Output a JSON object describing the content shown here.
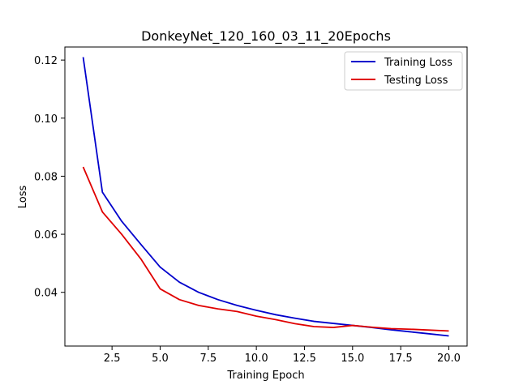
{
  "chart_data": {
    "type": "line",
    "title": "DonkeyNet_120_160_03_11_20Epochs",
    "xlabel": "Training Epoch",
    "ylabel": "Loss",
    "xlim": [
      0.05,
      20.95
    ],
    "ylim": [
      0.0215,
      0.1245
    ],
    "x_ticks": [
      2.5,
      5.0,
      7.5,
      10.0,
      12.5,
      15.0,
      17.5,
      20.0
    ],
    "x_tick_labels": [
      "2.5",
      "5.0",
      "7.5",
      "10.0",
      "12.5",
      "15.0",
      "17.5",
      "20.0"
    ],
    "y_ticks": [
      0.04,
      0.06,
      0.08,
      0.1,
      0.12
    ],
    "y_tick_labels": [
      "0.04",
      "0.06",
      "0.08",
      "0.10",
      "0.12"
    ],
    "grid": false,
    "legend_position": "top-right",
    "x": [
      1,
      2,
      3,
      4,
      5,
      6,
      7,
      8,
      9,
      10,
      11,
      12,
      13,
      14,
      15,
      16,
      17,
      18,
      19,
      20
    ],
    "series": [
      {
        "name": "Training Loss",
        "color": "#0000cc",
        "values": [
          0.121,
          0.0745,
          0.0645,
          0.0565,
          0.0487,
          0.0435,
          0.04,
          0.0375,
          0.0355,
          0.0338,
          0.0323,
          0.0311,
          0.03,
          0.0293,
          0.0286,
          0.0279,
          0.0271,
          0.0264,
          0.0257,
          0.025
        ]
      },
      {
        "name": "Testing Loss",
        "color": "#e00000",
        "values": [
          0.0832,
          0.0677,
          0.06,
          0.0515,
          0.0412,
          0.0375,
          0.0355,
          0.0343,
          0.0334,
          0.0318,
          0.0306,
          0.0292,
          0.0282,
          0.0279,
          0.0286,
          0.028,
          0.0275,
          0.0273,
          0.027,
          0.0267
        ]
      }
    ]
  }
}
